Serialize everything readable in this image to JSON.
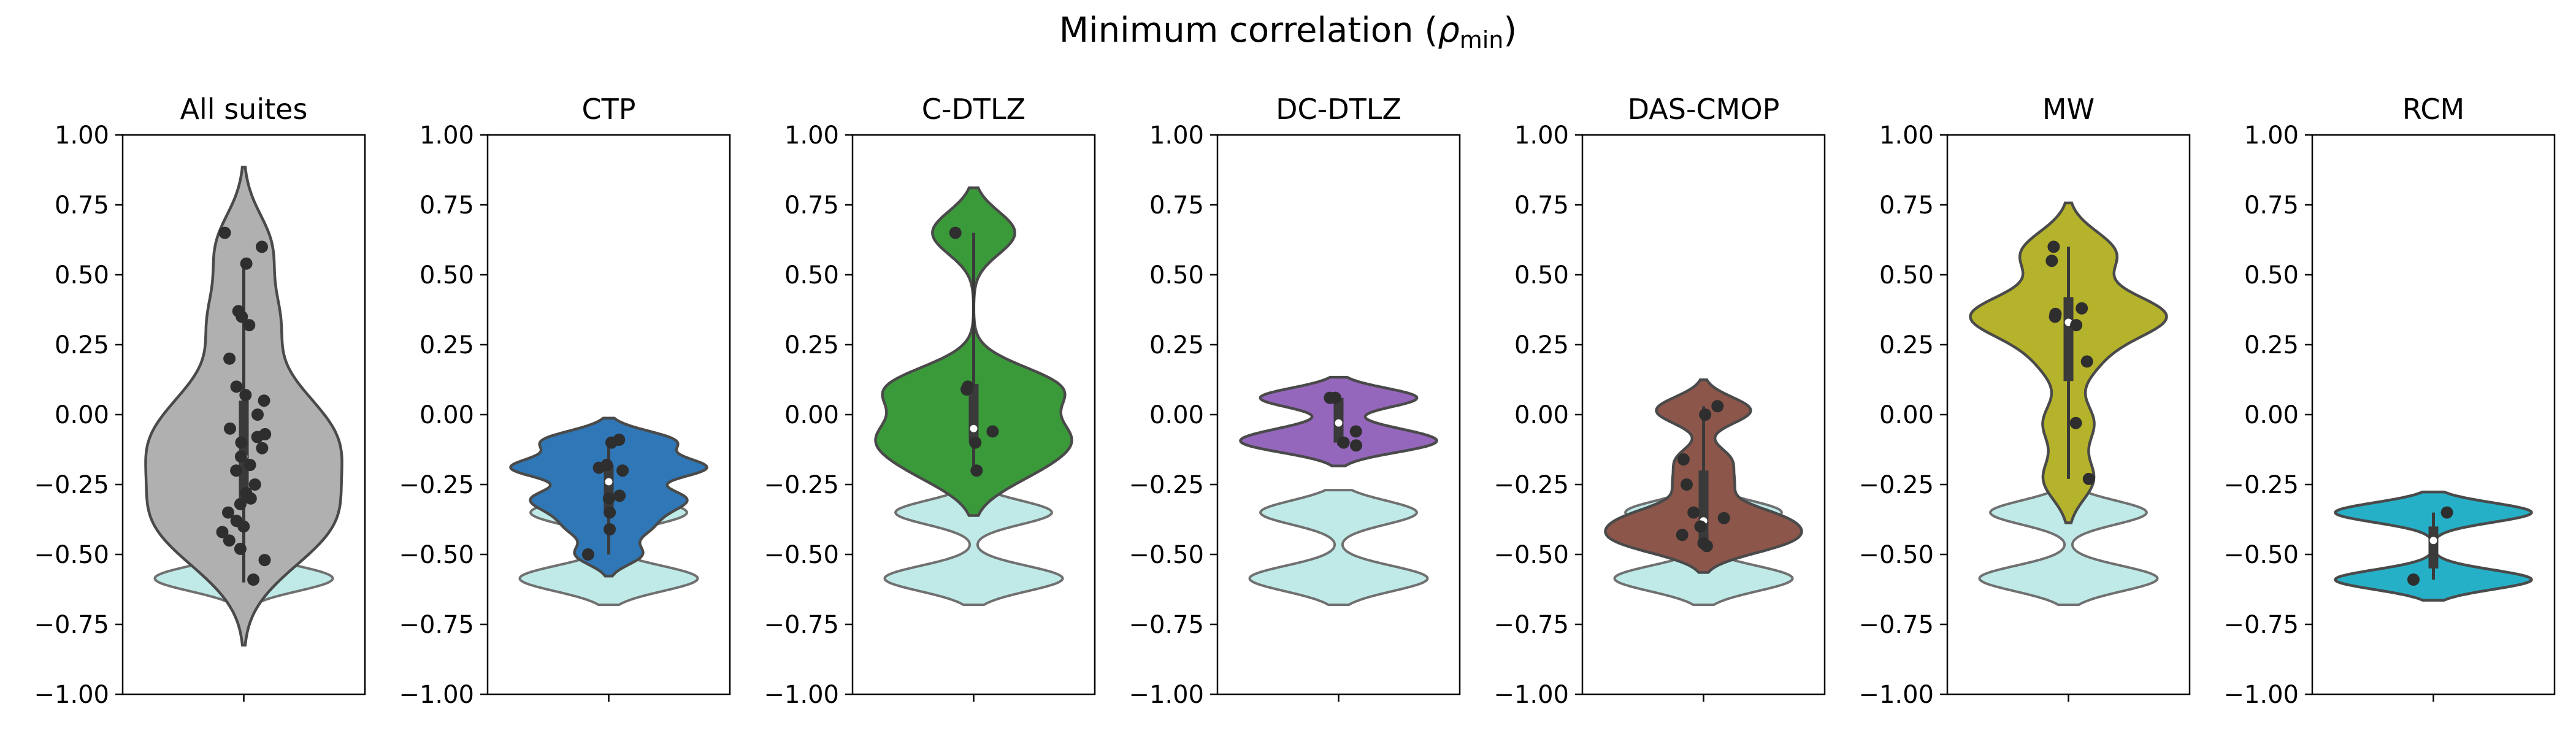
{
  "figure": {
    "title": "Minimum correlation (",
    "title_rho": "ρ",
    "title_sub": "min",
    "title_close": ")",
    "reference_color": "#bfeae8",
    "outline_color": "#4a4a4a"
  },
  "chart_data": [
    {
      "type": "violin",
      "title": "All suites",
      "color": "#b0b0b0",
      "ylim": [
        -1.0,
        1.0
      ],
      "yticks": [
        "1.00",
        "0.75",
        "0.50",
        "0.25",
        "0.00",
        "−0.25",
        "−0.50",
        "−0.75",
        "−1.00"
      ],
      "show_reference": true,
      "box": {
        "whisker_low": -0.6,
        "q1": -0.3,
        "median": -0.15,
        "q3": 0.05,
        "whisker_high": 0.55
      },
      "points": [
        0.6,
        0.65,
        0.54,
        0.37,
        0.35,
        0.32,
        0.2,
        0.1,
        0.07,
        0.05,
        0.0,
        -0.05,
        -0.07,
        -0.08,
        -0.1,
        -0.12,
        -0.15,
        -0.18,
        -0.2,
        -0.25,
        -0.28,
        -0.3,
        -0.32,
        -0.35,
        -0.38,
        -0.4,
        -0.42,
        -0.45,
        -0.48,
        -0.52,
        -0.59
      ]
    },
    {
      "type": "violin",
      "title": "CTP",
      "color": "#2f77b6",
      "ylim": [
        -1.0,
        1.0
      ],
      "yticks": [
        "1.00",
        "0.75",
        "0.50",
        "0.25",
        "0.00",
        "−0.25",
        "−0.50",
        "−0.75",
        "−1.00"
      ],
      "show_reference": true,
      "box": {
        "whisker_low": -0.5,
        "q1": -0.35,
        "median": -0.24,
        "q3": -0.18,
        "whisker_high": -0.09
      },
      "points": [
        -0.09,
        -0.1,
        -0.18,
        -0.19,
        -0.2,
        -0.29,
        -0.3,
        -0.35,
        -0.41,
        -0.5
      ]
    },
    {
      "type": "violin",
      "title": "C-DTLZ",
      "color": "#3a9a3a",
      "ylim": [
        -1.0,
        1.0
      ],
      "yticks": [
        "1.00",
        "0.75",
        "0.50",
        "0.25",
        "0.00",
        "−0.25",
        "−0.50",
        "−0.75",
        "−1.00"
      ],
      "show_reference": true,
      "box": {
        "whisker_low": -0.2,
        "q1": -0.1,
        "median": -0.05,
        "q3": 0.11,
        "whisker_high": 0.65
      },
      "points": [
        0.65,
        0.1,
        0.09,
        -0.06,
        -0.1,
        -0.2
      ]
    },
    {
      "type": "violin",
      "title": "DC-DTLZ",
      "color": "#9467bd",
      "ylim": [
        -1.0,
        1.0
      ],
      "yticks": [
        "1.00",
        "0.75",
        "0.50",
        "0.25",
        "0.00",
        "−0.25",
        "−0.50",
        "−0.75",
        "−1.00"
      ],
      "show_reference": true,
      "box": {
        "whisker_low": -0.11,
        "q1": -0.1,
        "median": -0.03,
        "q3": 0.06,
        "whisker_high": 0.07
      },
      "points": [
        0.06,
        0.06,
        -0.06,
        -0.1,
        -0.11
      ]
    },
    {
      "type": "violin",
      "title": "DAS-CMOP",
      "color": "#8c564b",
      "ylim": [
        -1.0,
        1.0
      ],
      "yticks": [
        "1.00",
        "0.75",
        "0.50",
        "0.25",
        "0.00",
        "−0.25",
        "−0.50",
        "−0.75",
        "−1.00"
      ],
      "show_reference": true,
      "box": {
        "whisker_low": -0.47,
        "q1": -0.45,
        "median": -0.38,
        "q3": -0.2,
        "whisker_high": 0.03
      },
      "points": [
        0.03,
        0.0,
        -0.16,
        -0.25,
        -0.35,
        -0.37,
        -0.4,
        -0.43,
        -0.46,
        -0.47
      ]
    },
    {
      "type": "violin",
      "title": "MW",
      "color": "#b5b22b",
      "ylim": [
        -1.0,
        1.0
      ],
      "yticks": [
        "1.00",
        "0.75",
        "0.50",
        "0.25",
        "0.00",
        "−0.25",
        "−0.50",
        "−0.75",
        "−1.00"
      ],
      "show_reference": true,
      "box": {
        "whisker_low": -0.23,
        "q1": 0.12,
        "median": 0.33,
        "q3": 0.42,
        "whisker_high": 0.6
      },
      "points": [
        0.6,
        0.55,
        0.38,
        0.36,
        0.35,
        0.32,
        0.19,
        -0.03,
        -0.23
      ]
    },
    {
      "type": "violin",
      "title": "RCM",
      "color": "#26b0c8",
      "ylim": [
        -1.0,
        1.0
      ],
      "yticks": [
        "1.00",
        "0.75",
        "0.50",
        "0.25",
        "0.00",
        "−0.25",
        "−0.50",
        "−0.75",
        "−1.00"
      ],
      "show_reference": false,
      "box": {
        "whisker_low": -0.59,
        "q1": -0.55,
        "median": -0.45,
        "q3": -0.4,
        "whisker_high": -0.35
      },
      "points": [
        -0.35,
        -0.59
      ]
    }
  ]
}
